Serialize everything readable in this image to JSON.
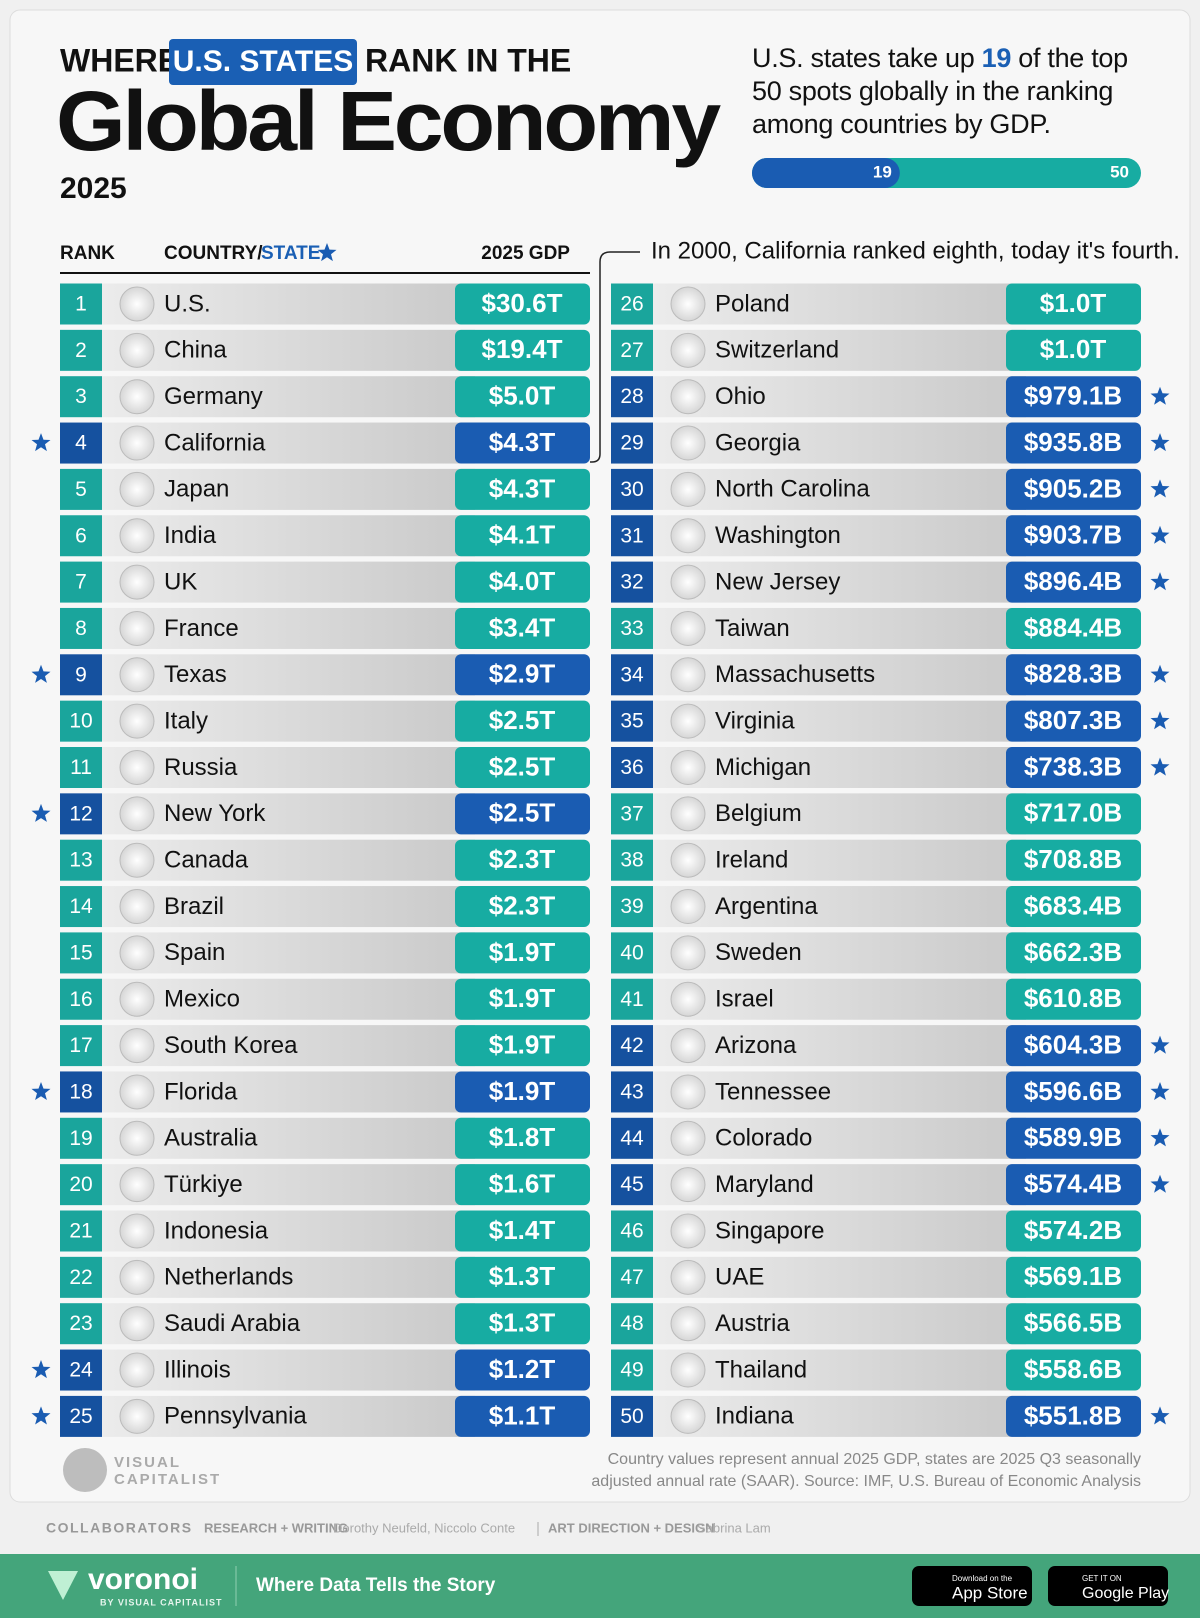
{
  "header": {
    "title_pre": "WHERE",
    "title_highlight": "U.S. STATES",
    "title_post": "RANK IN THE",
    "title_main": "Global Economy",
    "year": "2025",
    "subtitle_pre": "U.S. states take up",
    "subtitle_post": "of the top 50 spots globally in the ranking among countries by GDP.",
    "progress": {
      "value": 19,
      "total": 50
    }
  },
  "table": {
    "columns": {
      "rank": "RANK",
      "country": "COUNTRY/",
      "state": "STATE",
      "gdp": "2025 GDP"
    },
    "rows": [
      {
        "rank": 1,
        "name": "U.S.",
        "gdp": "$30.6T",
        "state": false
      },
      {
        "rank": 2,
        "name": "China",
        "gdp": "$19.4T",
        "state": false
      },
      {
        "rank": 3,
        "name": "Germany",
        "gdp": "$5.0T",
        "state": false
      },
      {
        "rank": 4,
        "name": "California",
        "gdp": "$4.3T",
        "state": true
      },
      {
        "rank": 5,
        "name": "Japan",
        "gdp": "$4.3T",
        "state": false
      },
      {
        "rank": 6,
        "name": "India",
        "gdp": "$4.1T",
        "state": false
      },
      {
        "rank": 7,
        "name": "UK",
        "gdp": "$4.0T",
        "state": false
      },
      {
        "rank": 8,
        "name": "France",
        "gdp": "$3.4T",
        "state": false
      },
      {
        "rank": 9,
        "name": "Texas",
        "gdp": "$2.9T",
        "state": true
      },
      {
        "rank": 10,
        "name": "Italy",
        "gdp": "$2.5T",
        "state": false
      },
      {
        "rank": 11,
        "name": "Russia",
        "gdp": "$2.5T",
        "state": false
      },
      {
        "rank": 12,
        "name": "New York",
        "gdp": "$2.5T",
        "state": true
      },
      {
        "rank": 13,
        "name": "Canada",
        "gdp": "$2.3T",
        "state": false
      },
      {
        "rank": 14,
        "name": "Brazil",
        "gdp": "$2.3T",
        "state": false
      },
      {
        "rank": 15,
        "name": "Spain",
        "gdp": "$1.9T",
        "state": false
      },
      {
        "rank": 16,
        "name": "Mexico",
        "gdp": "$1.9T",
        "state": false
      },
      {
        "rank": 17,
        "name": "South Korea",
        "gdp": "$1.9T",
        "state": false
      },
      {
        "rank": 18,
        "name": "Florida",
        "gdp": "$1.9T",
        "state": true
      },
      {
        "rank": 19,
        "name": "Australia",
        "gdp": "$1.8T",
        "state": false
      },
      {
        "rank": 20,
        "name": "Türkiye",
        "gdp": "$1.6T",
        "state": false
      },
      {
        "rank": 21,
        "name": "Indonesia",
        "gdp": "$1.4T",
        "state": false
      },
      {
        "rank": 22,
        "name": "Netherlands",
        "gdp": "$1.3T",
        "state": false
      },
      {
        "rank": 23,
        "name": "Saudi Arabia",
        "gdp": "$1.3T",
        "state": false
      },
      {
        "rank": 24,
        "name": "Illinois",
        "gdp": "$1.2T",
        "state": true
      },
      {
        "rank": 25,
        "name": "Pennsylvania",
        "gdp": "$1.1T",
        "state": true
      },
      {
        "rank": 26,
        "name": "Poland",
        "gdp": "$1.0T",
        "state": false
      },
      {
        "rank": 27,
        "name": "Switzerland",
        "gdp": "$1.0T",
        "state": false
      },
      {
        "rank": 28,
        "name": "Ohio",
        "gdp": "$979.1B",
        "state": true
      },
      {
        "rank": 29,
        "name": "Georgia",
        "gdp": "$935.8B",
        "state": true
      },
      {
        "rank": 30,
        "name": "North Carolina",
        "gdp": "$905.2B",
        "state": true
      },
      {
        "rank": 31,
        "name": "Washington",
        "gdp": "$903.7B",
        "state": true
      },
      {
        "rank": 32,
        "name": "New Jersey",
        "gdp": "$896.4B",
        "state": true
      },
      {
        "rank": 33,
        "name": "Taiwan",
        "gdp": "$884.4B",
        "state": false
      },
      {
        "rank": 34,
        "name": "Massachusetts",
        "gdp": "$828.3B",
        "state": true
      },
      {
        "rank": 35,
        "name": "Virginia",
        "gdp": "$807.3B",
        "state": true
      },
      {
        "rank": 36,
        "name": "Michigan",
        "gdp": "$738.3B",
        "state": true
      },
      {
        "rank": 37,
        "name": "Belgium",
        "gdp": "$717.0B",
        "state": false
      },
      {
        "rank": 38,
        "name": "Ireland",
        "gdp": "$708.8B",
        "state": false
      },
      {
        "rank": 39,
        "name": "Argentina",
        "gdp": "$683.4B",
        "state": false
      },
      {
        "rank": 40,
        "name": "Sweden",
        "gdp": "$662.3B",
        "state": false
      },
      {
        "rank": 41,
        "name": "Israel",
        "gdp": "$610.8B",
        "state": false
      },
      {
        "rank": 42,
        "name": "Arizona",
        "gdp": "$604.3B",
        "state": true
      },
      {
        "rank": 43,
        "name": "Tennessee",
        "gdp": "$596.6B",
        "state": true
      },
      {
        "rank": 44,
        "name": "Colorado",
        "gdp": "$589.9B",
        "state": true
      },
      {
        "rank": 45,
        "name": "Maryland",
        "gdp": "$574.4B",
        "state": true
      },
      {
        "rank": 46,
        "name": "Singapore",
        "gdp": "$574.2B",
        "state": false
      },
      {
        "rank": 47,
        "name": "UAE",
        "gdp": "$569.1B",
        "state": false
      },
      {
        "rank": 48,
        "name": "Austria",
        "gdp": "$566.5B",
        "state": false
      },
      {
        "rank": 49,
        "name": "Thailand",
        "gdp": "$558.6B",
        "state": false
      },
      {
        "rank": 50,
        "name": "Indiana",
        "gdp": "$551.8B",
        "state": true
      }
    ]
  },
  "annotation": "In 2000, California ranked eighth, today it's fourth.",
  "footnote": [
    "Country values represent annual 2025 GDP, states are 2025 Q3 seasonally",
    "adjusted annual rate (SAAR). Source: IMF, U.S. Bureau of Economic Analysis"
  ],
  "logo": [
    "VISUAL",
    "CAPITALIST"
  ],
  "credits": {
    "heading": "COLLABORATORS",
    "research_label": "RESEARCH + WRITING",
    "research": "Dorothy Neufeld, Niccolo Conte",
    "design_label": "ART DIRECTION + DESIGN",
    "design": "Sabrina Lam"
  },
  "footer": {
    "brand": "voronoi",
    "brand_sub": "BY VISUAL CAPITALIST",
    "tagline": "Where Data Tells the Story",
    "appstore_small": "Download on the",
    "appstore": "App Store",
    "play_small": "GET IT ON",
    "play": "Google Play"
  }
}
